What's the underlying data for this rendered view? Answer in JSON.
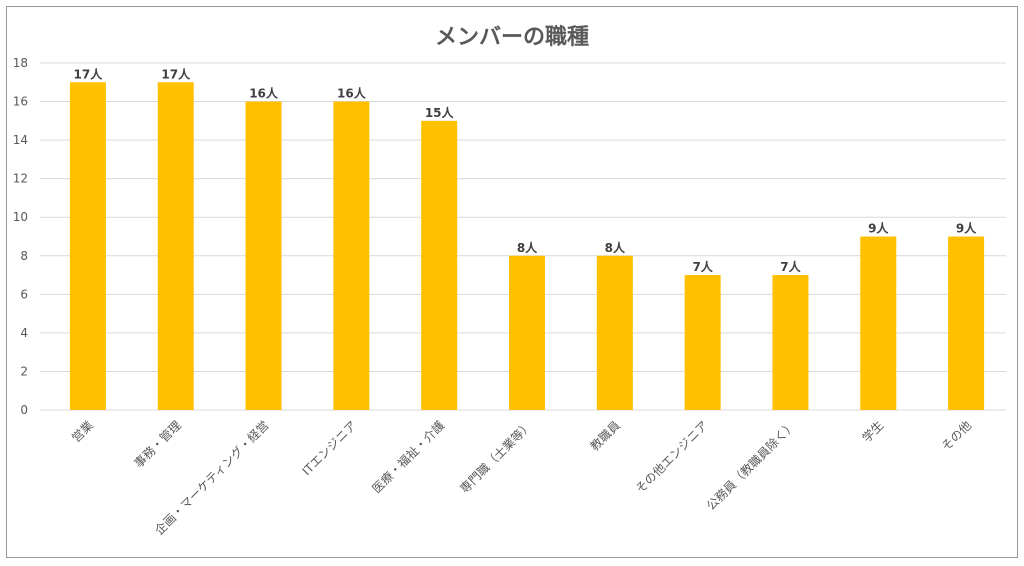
{
  "chart_data": {
    "type": "bar",
    "title": "メンバーの職種",
    "xlabel": "",
    "ylabel": "",
    "ylim": [
      0,
      18
    ],
    "yticks": [
      0,
      2,
      4,
      6,
      8,
      10,
      12,
      14,
      16,
      18
    ],
    "grid": true,
    "categories": [
      "営業",
      "事務・管理",
      "企画・マーケティング・経営",
      "ITエンジニア",
      "医療・福祉・介護",
      "専門職（士業等）",
      "教職員",
      "その他エンジニア",
      "公務員（教職員除く）",
      "学生",
      "その他"
    ],
    "values": [
      17,
      17,
      16,
      16,
      15,
      8,
      8,
      7,
      7,
      9,
      9
    ],
    "value_labels": [
      "17人",
      "17人",
      "16人",
      "16人",
      "15人",
      "8人",
      "8人",
      "7人",
      "7人",
      "9人",
      "9人"
    ],
    "bar_color": "#FFC000"
  }
}
